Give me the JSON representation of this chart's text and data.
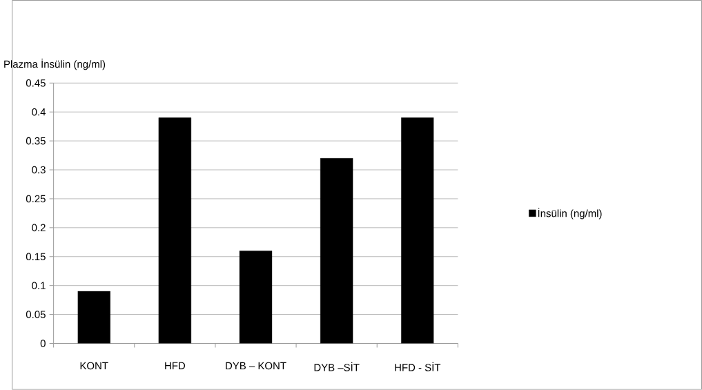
{
  "chart_data": {
    "type": "bar",
    "title": "Plazma İnsülin (ng/ml)",
    "categories": [
      "KONT",
      "HFD",
      "DYB – KONT",
      "DYB –SİT",
      "HFD - SİT"
    ],
    "series": [
      {
        "name": "İnsülin (ng/ml)",
        "color": "#000000",
        "values": [
          0.09,
          0.39,
          0.16,
          0.32,
          0.39
        ]
      }
    ],
    "ylim": [
      0,
      0.45
    ],
    "yticks": [
      0,
      0.05,
      0.1,
      0.15,
      0.2,
      0.25,
      0.3,
      0.35,
      0.4,
      0.45
    ],
    "grid": "y",
    "legend": "right"
  }
}
